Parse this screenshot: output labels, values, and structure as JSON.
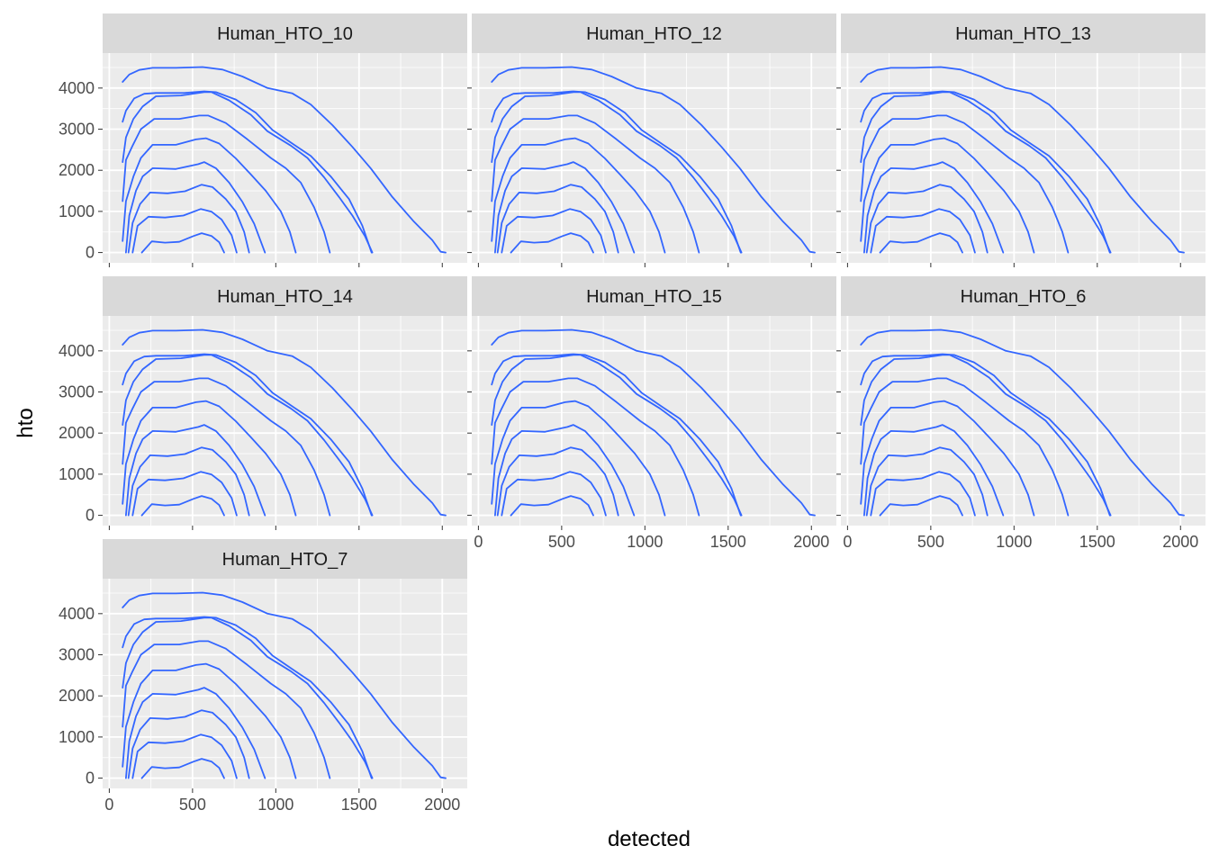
{
  "chart_data": {
    "type": "line",
    "subtype": "density_2d_contours",
    "facets": [
      "Human_HTO_10",
      "Human_HTO_12",
      "Human_HTO_13",
      "Human_HTO_14",
      "Human_HTO_15",
      "Human_HTO_6",
      "Human_HTO_7"
    ],
    "xlabel": "detected",
    "ylabel": "hto",
    "xlim": [
      -40,
      2150
    ],
    "ylim": [
      -250,
      4850
    ],
    "x_ticks": [
      0,
      500,
      1000,
      1500,
      2000
    ],
    "x_tick_labels": [
      "0",
      "500",
      "1000",
      "1500",
      "2000"
    ],
    "y_ticks": [
      0,
      1000,
      2000,
      3000,
      4000
    ],
    "y_tick_labels": [
      "0",
      "1000",
      "2000",
      "3000",
      "4000"
    ],
    "grid": true,
    "line_color": "#3366FF",
    "panel_background": "#EBEBEB",
    "strip_background": "#D9D9D9",
    "contours": [
      [
        [
          195,
          0
        ],
        [
          255,
          270
        ],
        [
          335,
          240
        ],
        [
          420,
          260
        ],
        [
          505,
          400
        ],
        [
          555,
          470
        ],
        [
          615,
          400
        ],
        [
          660,
          250
        ],
        [
          690,
          0
        ]
      ],
      [
        [
          140,
          0
        ],
        [
          170,
          650
        ],
        [
          235,
          870
        ],
        [
          335,
          850
        ],
        [
          445,
          900
        ],
        [
          550,
          1060
        ],
        [
          615,
          990
        ],
        [
          675,
          800
        ],
        [
          735,
          420
        ],
        [
          765,
          0
        ]
      ],
      [
        [
          115,
          0
        ],
        [
          140,
          720
        ],
        [
          185,
          1180
        ],
        [
          245,
          1460
        ],
        [
          350,
          1440
        ],
        [
          455,
          1490
        ],
        [
          555,
          1650
        ],
        [
          620,
          1590
        ],
        [
          700,
          1300
        ],
        [
          760,
          1000
        ],
        [
          810,
          500
        ],
        [
          840,
          0
        ]
      ],
      [
        [
          100,
          0
        ],
        [
          120,
          900
        ],
        [
          160,
          1500
        ],
        [
          200,
          1850
        ],
        [
          260,
          2050
        ],
        [
          400,
          2030
        ],
        [
          535,
          2150
        ],
        [
          570,
          2200
        ],
        [
          640,
          2050
        ],
        [
          720,
          1700
        ],
        [
          800,
          1230
        ],
        [
          870,
          700
        ],
        [
          935,
          0
        ]
      ],
      [
        [
          80,
          280
        ],
        [
          100,
          1250
        ],
        [
          145,
          1850
        ],
        [
          190,
          2300
        ],
        [
          260,
          2620
        ],
        [
          400,
          2620
        ],
        [
          520,
          2750
        ],
        [
          580,
          2780
        ],
        [
          660,
          2650
        ],
        [
          760,
          2290
        ],
        [
          850,
          1900
        ],
        [
          940,
          1500
        ],
        [
          1030,
          1000
        ],
        [
          1085,
          500
        ],
        [
          1120,
          0
        ]
      ],
      [
        [
          80,
          1250
        ],
        [
          100,
          2250
        ],
        [
          140,
          2600
        ],
        [
          190,
          3000
        ],
        [
          270,
          3250
        ],
        [
          420,
          3250
        ],
        [
          540,
          3330
        ],
        [
          595,
          3330
        ],
        [
          700,
          3150
        ],
        [
          830,
          2750
        ],
        [
          970,
          2300
        ],
        [
          1060,
          2050
        ],
        [
          1150,
          1700
        ],
        [
          1230,
          1100
        ],
        [
          1290,
          500
        ],
        [
          1325,
          0
        ]
      ],
      [
        [
          80,
          2200
        ],
        [
          100,
          2800
        ],
        [
          145,
          3250
        ],
        [
          200,
          3550
        ],
        [
          280,
          3800
        ],
        [
          430,
          3820
        ],
        [
          570,
          3900
        ],
        [
          615,
          3900
        ],
        [
          720,
          3700
        ],
        [
          850,
          3350
        ],
        [
          950,
          2950
        ],
        [
          1090,
          2600
        ],
        [
          1190,
          2300
        ],
        [
          1290,
          1830
        ],
        [
          1380,
          1350
        ],
        [
          1460,
          900
        ],
        [
          1535,
          400
        ],
        [
          1580,
          0
        ]
      ],
      [
        [
          80,
          3180
        ],
        [
          100,
          3450
        ],
        [
          150,
          3750
        ],
        [
          210,
          3860
        ],
        [
          280,
          3880
        ],
        [
          450,
          3880
        ],
        [
          570,
          3920
        ],
        [
          640,
          3900
        ],
        [
          760,
          3720
        ],
        [
          880,
          3400
        ],
        [
          980,
          2980
        ],
        [
          1110,
          2620
        ],
        [
          1210,
          2350
        ],
        [
          1330,
          1850
        ],
        [
          1440,
          1300
        ],
        [
          1520,
          650
        ],
        [
          1575,
          0
        ]
      ],
      [
        [
          80,
          4150
        ],
        [
          120,
          4330
        ],
        [
          180,
          4440
        ],
        [
          260,
          4490
        ],
        [
          400,
          4490
        ],
        [
          560,
          4510
        ],
        [
          680,
          4450
        ],
        [
          800,
          4280
        ],
        [
          950,
          4000
        ],
        [
          1100,
          3870
        ],
        [
          1210,
          3600
        ],
        [
          1340,
          3100
        ],
        [
          1460,
          2570
        ],
        [
          1570,
          2050
        ],
        [
          1700,
          1350
        ],
        [
          1830,
          750
        ],
        [
          1940,
          300
        ],
        [
          1990,
          20
        ],
        [
          2020,
          0
        ]
      ]
    ]
  }
}
